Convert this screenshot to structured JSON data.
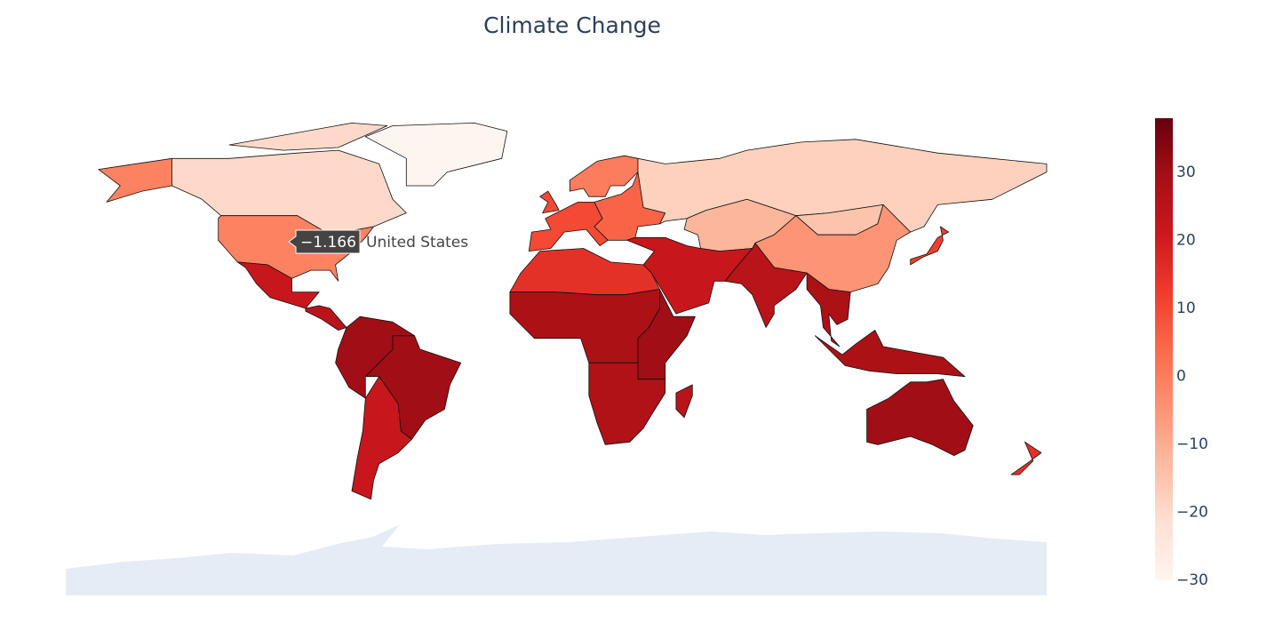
{
  "chart_data": {
    "type": "choropleth",
    "title": "Climate Change",
    "locations": [
      null,
      "United States",
      null,
      null,
      null,
      null,
      null,
      null,
      null,
      null,
      null,
      null,
      null,
      null,
      null,
      null,
      null,
      null,
      null,
      null,
      null,
      null,
      null,
      null,
      null,
      null,
      null
    ],
    "values": [
      -20,
      -1.166,
      -30,
      22,
      25,
      30,
      30,
      22,
      15,
      28,
      30,
      27,
      10,
      0,
      5,
      -18,
      -12,
      -15,
      -5,
      22,
      25,
      28,
      28,
      30,
      12,
      25,
      15
    ],
    "value_labels": [
      null,
      "−1.166",
      null,
      null,
      null,
      null,
      null,
      null,
      null,
      null,
      null,
      null,
      null,
      null,
      null,
      null,
      null,
      null,
      null,
      null,
      null,
      null,
      null,
      null,
      null,
      null,
      null
    ],
    "hover": 1,
    "colorscale": [
      "#fff5f0",
      "#fee0d2",
      "#fcbba1",
      "#fc9272",
      "#fb6a4a",
      "#ef3b2c",
      "#cb181d",
      "#a50f15",
      "#67000d"
    ],
    "zlim": [
      -30,
      38
    ],
    "zticks": [
      {
        "value": -30,
        "label": "−30"
      },
      {
        "value": -20,
        "label": "−20"
      },
      {
        "value": -10,
        "label": "−10"
      },
      0,
      10,
      20,
      30
    ]
  }
}
